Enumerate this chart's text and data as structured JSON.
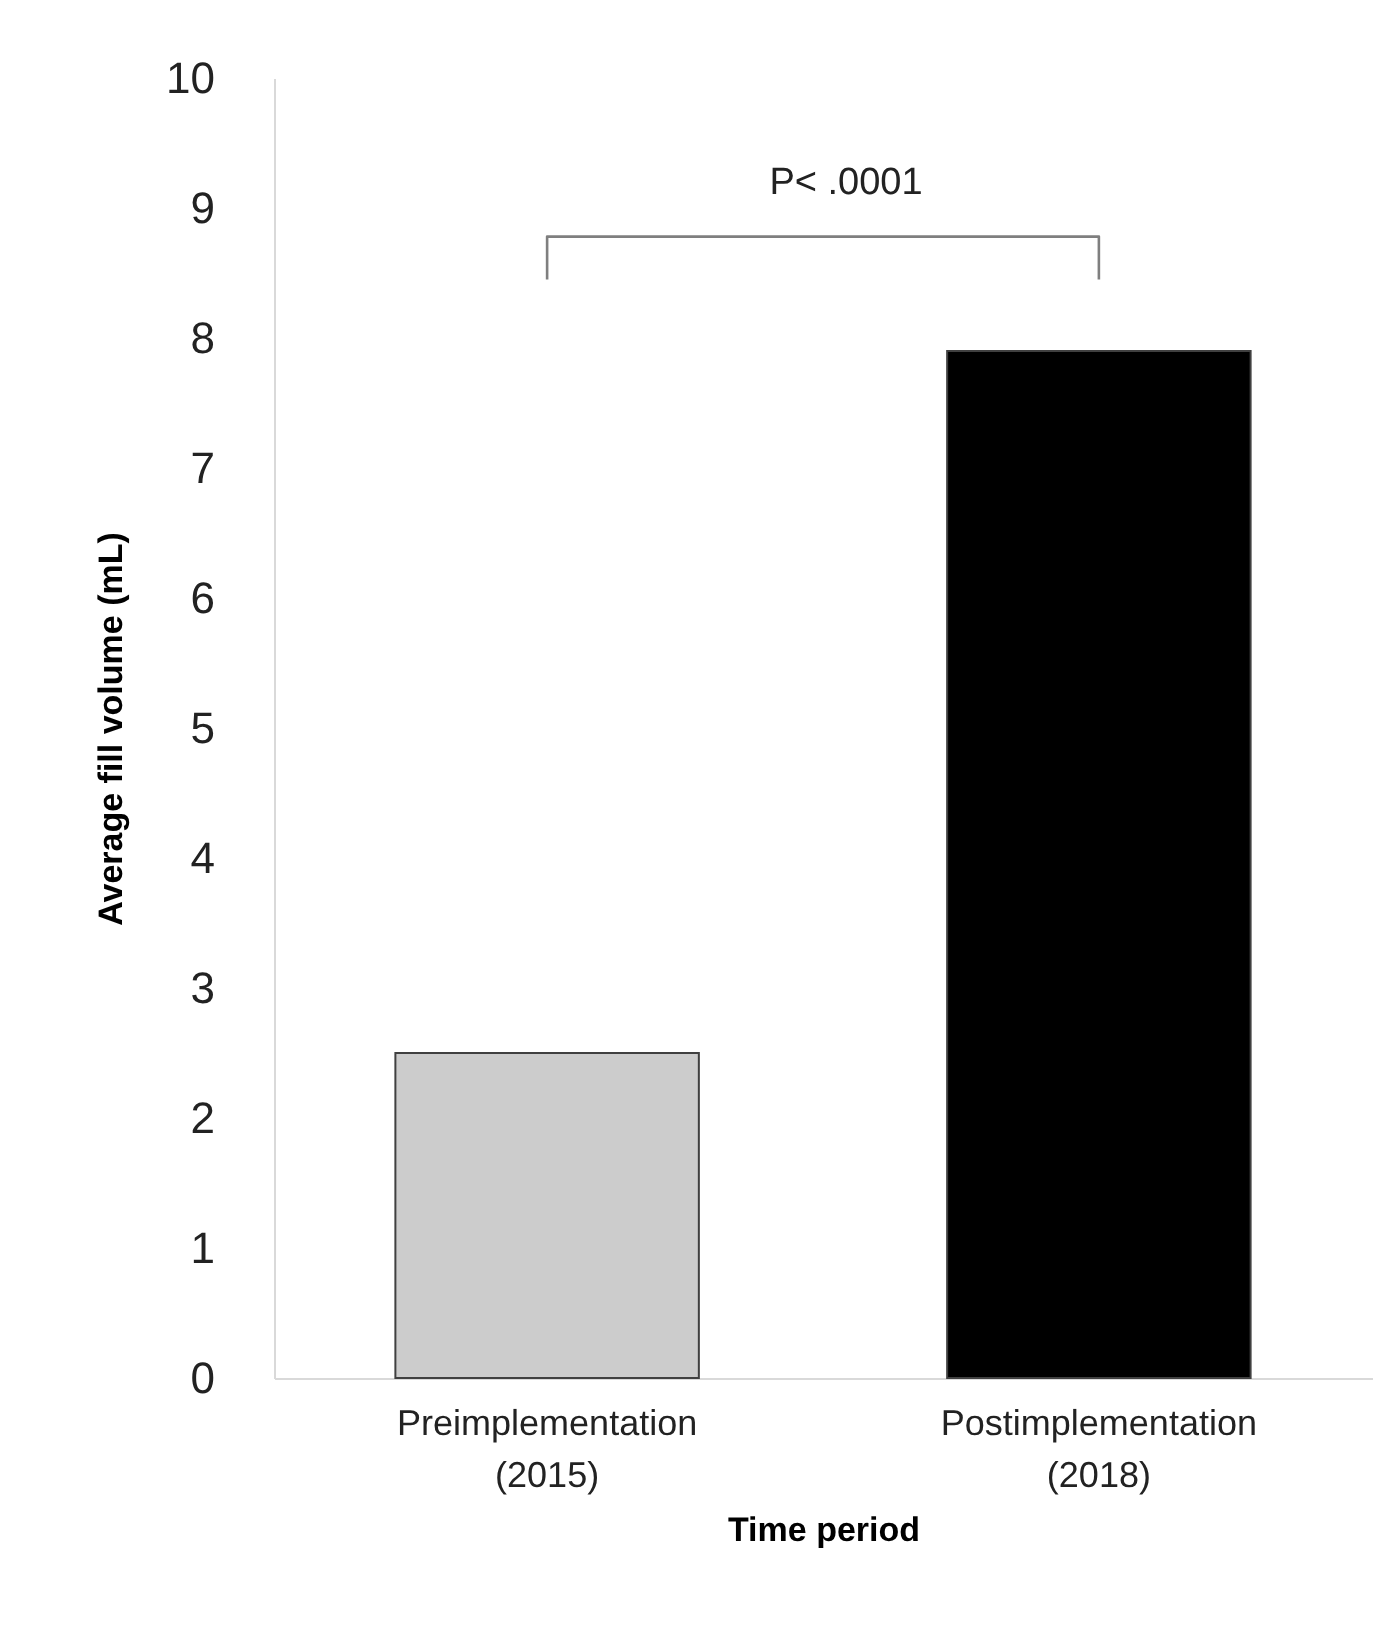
{
  "chart_data": {
    "type": "bar",
    "xlabel": "Time period",
    "ylabel": "Average fill volume (mL)",
    "categories": [
      "Preimplementation\n(2015)",
      "Postimplementation\n(2018)"
    ],
    "values": [
      2.5,
      7.9
    ],
    "colors": [
      "#cccccc",
      "#000000"
    ],
    "ylim": [
      0,
      10
    ],
    "yticks": [
      0,
      1,
      2,
      3,
      4,
      5,
      6,
      7,
      8,
      9,
      10
    ],
    "grid": false,
    "annotations": [
      "P< .0001"
    ]
  }
}
